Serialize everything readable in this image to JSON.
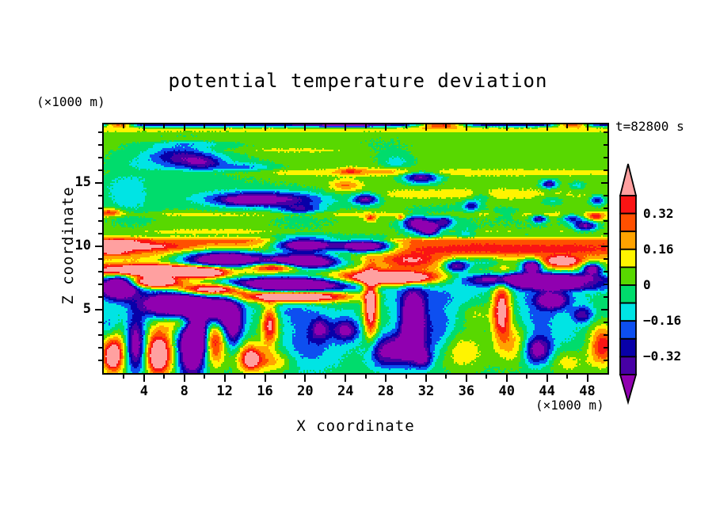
{
  "chart": {
    "title": "potential temperature deviation",
    "y_units_label": "(×1000 m)",
    "x_units_label": "(×1000 m)",
    "time_label": "t=82800 s",
    "x_axis_label": "X coordinate",
    "y_axis_label": "Z coordinate"
  },
  "chart_data": {
    "type": "heatmap",
    "title": "potential temperature deviation",
    "xlabel": "X coordinate",
    "ylabel": "Z coordinate",
    "x_units": "(×1000 m)",
    "z_units": "(×1000 m)",
    "time": "t=82800 s",
    "x_range": [
      0,
      50
    ],
    "z_range": [
      0,
      19.6
    ],
    "x_major_ticks": [
      4,
      8,
      12,
      16,
      20,
      24,
      28,
      32,
      36,
      40,
      44,
      48
    ],
    "x_minor_step": 2,
    "y_major_ticks": [
      5,
      10,
      15
    ],
    "y_minor_step": 1,
    "grid": false,
    "legend_position": "right-colorbar",
    "levels": {
      "min": -0.4,
      "max": 0.4,
      "step": 0.08,
      "labeled": [
        0.32,
        0.16,
        0,
        -0.16,
        -0.32
      ]
    },
    "colorbar_labels": [
      "0.32",
      "0.16",
      "0",
      "−0.16",
      "−0.32"
    ],
    "palette": [
      {
        "name": "below-min-purple",
        "hex": "#9000B0"
      },
      {
        "name": "dark-violet",
        "hex": "#4700A5"
      },
      {
        "name": "navy",
        "hex": "#0800A8"
      },
      {
        "name": "blue",
        "hex": "#0D4FF0"
      },
      {
        "name": "cyan",
        "hex": "#00E4E4"
      },
      {
        "name": "spring-green",
        "hex": "#00DC6C"
      },
      {
        "name": "lawn-green",
        "hex": "#58D800"
      },
      {
        "name": "yellow",
        "hex": "#FFF400"
      },
      {
        "name": "orange",
        "hex": "#FFA300"
      },
      {
        "name": "orange-red",
        "hex": "#FF5000"
      },
      {
        "name": "red",
        "hex": "#FA1414"
      },
      {
        "name": "above-max-pink",
        "hex": "#FFA0A0"
      }
    ],
    "field_model": {
      "comment": "deviation value = profile(z) + sum of gaussian blobs [x,z,rx,rz,amp]; quantized at 0.08 steps",
      "speckle_amp": 0.015,
      "profile": [
        [
          0,
          -0.03
        ],
        [
          3.5,
          -0.04
        ],
        [
          5,
          -0.055
        ],
        [
          6.4,
          -0.06
        ],
        [
          7,
          0
        ],
        [
          7.6,
          0.1
        ],
        [
          8.2,
          0.12
        ],
        [
          8.7,
          0.1
        ],
        [
          9.2,
          0.2
        ],
        [
          9.7,
          0.3
        ],
        [
          10.45,
          0.3
        ],
        [
          10.75,
          0.08
        ],
        [
          11,
          0.04
        ],
        [
          19,
          0.04
        ],
        [
          19.35,
          0.02
        ],
        [
          19.5,
          -0.28
        ],
        [
          19.6,
          -0.32
        ]
      ],
      "blobs": [
        [
          24,
          19.6,
          4,
          0.3,
          -0.15
        ],
        [
          33.5,
          19.6,
          2.5,
          0.25,
          0.65
        ],
        [
          46.5,
          19.6,
          1.8,
          0.22,
          0.62
        ],
        [
          1.5,
          19.6,
          1.5,
          0.22,
          0.6
        ],
        [
          25,
          19.15,
          60,
          0.2,
          0.09
        ],
        [
          30,
          15.8,
          30,
          0.25,
          0.1
        ],
        [
          29,
          15.95,
          4,
          0.3,
          0.1
        ],
        [
          36,
          14.1,
          11,
          0.45,
          0.1
        ],
        [
          25,
          12.5,
          60,
          0.22,
          0.09
        ],
        [
          11,
          11.15,
          9,
          0.18,
          0.09
        ],
        [
          40,
          11.2,
          9,
          0.18,
          0.08
        ],
        [
          8,
          18.35,
          7,
          0.18,
          0.08
        ],
        [
          18,
          17.55,
          6,
          0.18,
          0.08
        ],
        [
          7,
          16.9,
          5,
          1.3,
          -0.15
        ],
        [
          7.5,
          17.1,
          2.5,
          0.7,
          -0.2
        ],
        [
          9.8,
          16.6,
          2,
          0.55,
          -0.25
        ],
        [
          14,
          16.2,
          3,
          0.4,
          -0.18
        ],
        [
          9,
          18.1,
          4,
          0.25,
          -0.1
        ],
        [
          2,
          14.5,
          3,
          1.8,
          -0.13
        ],
        [
          16,
          13.7,
          5.5,
          0.55,
          -0.42
        ],
        [
          14,
          13.6,
          2,
          0.35,
          -0.2
        ],
        [
          16,
          13.7,
          7.5,
          1.1,
          -0.1
        ],
        [
          19.5,
          12.9,
          2,
          0.4,
          -0.28
        ],
        [
          10,
          16,
          6,
          2.5,
          -0.05
        ],
        [
          3,
          12.8,
          3,
          1.5,
          -0.06
        ],
        [
          20,
          11.8,
          4,
          1.2,
          -0.05
        ],
        [
          35,
          12.5,
          4,
          1.5,
          -0.05
        ],
        [
          28,
          17.8,
          3.5,
          1,
          -0.05
        ],
        [
          42,
          11.2,
          4,
          1,
          -0.05
        ],
        [
          0.6,
          12.7,
          1.3,
          0.3,
          0.3
        ],
        [
          24,
          14.8,
          1.5,
          0.4,
          0.22
        ],
        [
          24.5,
          15.9,
          1.2,
          0.3,
          0.2
        ],
        [
          26.5,
          12.2,
          0.5,
          0.25,
          0.3
        ],
        [
          29.5,
          12.25,
          0.4,
          0.2,
          0.28
        ],
        [
          48.8,
          12.3,
          0.8,
          0.3,
          0.3
        ],
        [
          31.5,
          15.45,
          1.8,
          0.5,
          -0.45
        ],
        [
          26,
          13.7,
          1.3,
          0.45,
          -0.45
        ],
        [
          31,
          11.8,
          1.3,
          0.6,
          -0.4
        ],
        [
          32.3,
          11.35,
          1,
          0.5,
          -0.5
        ],
        [
          33.8,
          11.9,
          0.8,
          0.4,
          -0.3
        ],
        [
          32,
          11.7,
          2.8,
          1,
          -0.12
        ],
        [
          36.5,
          13.2,
          0.8,
          0.4,
          -0.3
        ],
        [
          43.2,
          12.15,
          0.7,
          0.3,
          -0.4
        ],
        [
          47.8,
          11.6,
          1.2,
          0.4,
          -0.45
        ],
        [
          44.2,
          14.9,
          0.8,
          0.35,
          -0.4
        ],
        [
          49,
          13.6,
          0.7,
          0.4,
          -0.35
        ],
        [
          37.5,
          13.9,
          1,
          0.4,
          -0.15
        ],
        [
          40,
          12.6,
          1.2,
          0.4,
          -0.14
        ],
        [
          44.5,
          13.6,
          1,
          0.4,
          -0.15
        ],
        [
          47,
          14.8,
          0.8,
          0.3,
          -0.15
        ],
        [
          36,
          11.1,
          1,
          0.4,
          -0.15
        ],
        [
          46.5,
          12.2,
          1,
          0.35,
          -0.3
        ],
        [
          29,
          16.6,
          1.5,
          0.6,
          -0.15
        ],
        [
          20,
          10.1,
          3.2,
          0.55,
          -0.9
        ],
        [
          26,
          10,
          2.8,
          0.55,
          -0.9
        ],
        [
          1.5,
          10.15,
          2.5,
          0.5,
          0.2
        ],
        [
          4,
          9.95,
          3.5,
          0.22,
          0.18
        ],
        [
          1,
          9.5,
          1.5,
          0.2,
          0.18
        ],
        [
          40,
          9.7,
          10,
          0.4,
          0.08
        ],
        [
          12,
          9,
          4.5,
          0.75,
          -0.8
        ],
        [
          20,
          8.8,
          3.5,
          0.65,
          -0.8
        ],
        [
          17,
          8.35,
          2.5,
          0.35,
          0.55
        ],
        [
          5,
          8.1,
          6,
          0.45,
          0.75
        ],
        [
          10,
          7.9,
          2,
          0.4,
          0.5
        ],
        [
          1.5,
          6.8,
          1.8,
          0.9,
          -0.85
        ],
        [
          11,
          6.6,
          3.5,
          0.45,
          0.8
        ],
        [
          5,
          7.15,
          2.5,
          0.4,
          0.7
        ],
        [
          18,
          6.95,
          6,
          0.6,
          -0.85
        ],
        [
          19,
          6.05,
          5.5,
          0.45,
          0.8
        ],
        [
          28.5,
          7.5,
          4.5,
          0.5,
          0.8
        ],
        [
          43,
          7.4,
          7,
          0.5,
          -0.85
        ],
        [
          45,
          6.75,
          5,
          0.3,
          -0.3
        ],
        [
          42.5,
          8.4,
          1,
          0.5,
          -0.7
        ],
        [
          48.5,
          8.2,
          1,
          0.45,
          -0.6
        ],
        [
          45.5,
          8.8,
          1.8,
          0.4,
          0.5
        ],
        [
          30.5,
          8.8,
          2.8,
          0.55,
          0.3
        ],
        [
          38,
          8.7,
          2.5,
          0.6,
          -0.18
        ],
        [
          35,
          8.4,
          1.2,
          0.5,
          -0.5
        ],
        [
          1,
          1.6,
          1.2,
          1.6,
          0.55
        ],
        [
          0.8,
          1.1,
          0.6,
          0.7,
          0.22
        ],
        [
          5.5,
          1.6,
          1.4,
          1.9,
          0.6
        ],
        [
          5.3,
          1.2,
          0.7,
          0.8,
          0.22
        ],
        [
          11,
          2.6,
          1.1,
          2,
          0.45
        ],
        [
          14.6,
          1.2,
          1.3,
          1.1,
          0.5
        ],
        [
          14.6,
          1,
          0.6,
          0.5,
          0.2
        ],
        [
          8,
          4,
          1.8,
          0.7,
          0.3
        ],
        [
          16.5,
          3.8,
          0.8,
          1.6,
          0.5
        ],
        [
          17,
          0.9,
          1.6,
          0.8,
          0.2
        ],
        [
          3.2,
          2.2,
          1,
          2.2,
          -0.5
        ],
        [
          8.7,
          2,
          1.4,
          2.4,
          -0.6
        ],
        [
          12.8,
          3.6,
          1,
          1.6,
          -0.42
        ],
        [
          21.5,
          3.5,
          0.9,
          0.9,
          -0.32
        ],
        [
          24,
          3.4,
          1.3,
          0.9,
          -0.4
        ],
        [
          20,
          2.5,
          2.2,
          2,
          -0.15
        ],
        [
          0.5,
          3.6,
          1,
          1.2,
          -0.18
        ],
        [
          7,
          5.4,
          3,
          0.9,
          -0.85
        ],
        [
          11.5,
          4.9,
          1.8,
          1.3,
          -0.6
        ],
        [
          9.3,
          3.2,
          1,
          1.8,
          -0.5
        ],
        [
          26.5,
          5.4,
          0.7,
          2.6,
          0.6
        ],
        [
          39.5,
          5,
          0.9,
          2.4,
          0.55
        ],
        [
          35.5,
          1.8,
          2.6,
          1.6,
          0.2
        ],
        [
          37,
          4.6,
          1.6,
          1,
          0.16
        ],
        [
          41,
          2.3,
          1.6,
          1.6,
          0.22
        ],
        [
          49.5,
          2.2,
          1.3,
          1.6,
          0.42
        ],
        [
          46,
          0.9,
          2,
          1,
          0.16
        ],
        [
          30,
          1.9,
          1.9,
          1.3,
          -0.5
        ],
        [
          31.7,
          1.1,
          0.8,
          0.7,
          -0.32
        ],
        [
          27.6,
          1.6,
          1.4,
          1.2,
          -0.3
        ],
        [
          30.7,
          4.3,
          1.1,
          1.9,
          -0.75
        ],
        [
          33.2,
          3,
          1.5,
          2,
          -0.15
        ],
        [
          43,
          4.2,
          2,
          1.5,
          -0.13
        ],
        [
          44.5,
          5.7,
          1.5,
          0.7,
          -0.48
        ],
        [
          43,
          1.8,
          1.4,
          1.1,
          -0.48
        ],
        [
          47.5,
          4.6,
          1,
          0.6,
          -0.32
        ],
        [
          34,
          4.2,
          4,
          2.6,
          -0.06
        ],
        [
          46,
          3,
          3,
          2,
          -0.05
        ],
        [
          22,
          1.8,
          3,
          2,
          -0.06
        ],
        [
          18.5,
          4.9,
          2.6,
          1.1,
          -0.1
        ],
        [
          31,
          6.1,
          5,
          0.8,
          -0.1
        ],
        [
          44,
          6,
          3,
          0.6,
          -0.1
        ]
      ]
    }
  }
}
